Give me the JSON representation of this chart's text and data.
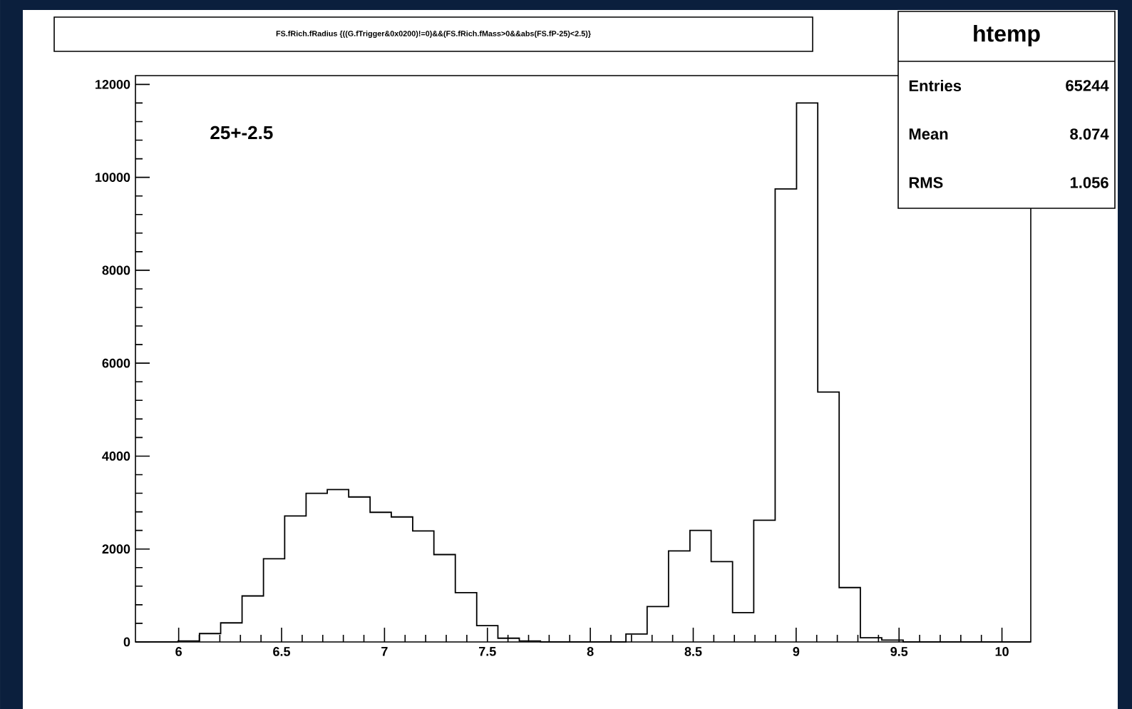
{
  "chart_data": {
    "type": "histogram",
    "title": "FS.fRich.fRadius {((G.fTrigger&0x0200)!=0)&&(FS.fRich.fMass>0&&abs(FS.fP-25)<2.5)}",
    "bins": [
      5.79,
      5.894,
      5.997,
      6.101,
      6.204,
      6.308,
      6.412,
      6.515,
      6.619,
      6.722,
      6.826,
      6.93,
      7.033,
      7.137,
      7.24,
      7.344,
      7.448,
      7.551,
      7.655,
      7.758,
      7.862,
      7.966,
      8.069,
      8.173,
      8.276,
      8.38,
      8.484,
      8.587,
      8.691,
      8.794,
      8.898,
      9.002,
      9.105,
      9.209,
      9.312,
      9.416,
      9.52,
      9.623,
      9.727,
      9.83,
      9.934,
      10.038,
      10.14
    ],
    "values": [
      0,
      0,
      20,
      180,
      410,
      990,
      1790,
      2710,
      3200,
      3280,
      3120,
      2790,
      2690,
      2390,
      1880,
      1060,
      350,
      80,
      20,
      0,
      0,
      0,
      0,
      170,
      760,
      1960,
      2400,
      1730,
      630,
      2620,
      9750,
      11600,
      5380,
      1170,
      90,
      40,
      0,
      0,
      0,
      0,
      0,
      0
    ],
    "color": "#000000",
    "xlim": [
      5.79,
      10.14
    ],
    "ylim": [
      0,
      12190
    ],
    "xticks": [
      6,
      6.5,
      7,
      7.5,
      8,
      8.5,
      9,
      9.5,
      10
    ],
    "yticks": [
      0,
      2000,
      4000,
      6000,
      8000,
      10000,
      12000
    ],
    "grid": false,
    "annotations": [
      "25+-2.5",
      "htemp",
      "Entries",
      "65244",
      "Mean",
      "8.074",
      "RMS",
      "1.056"
    ]
  }
}
